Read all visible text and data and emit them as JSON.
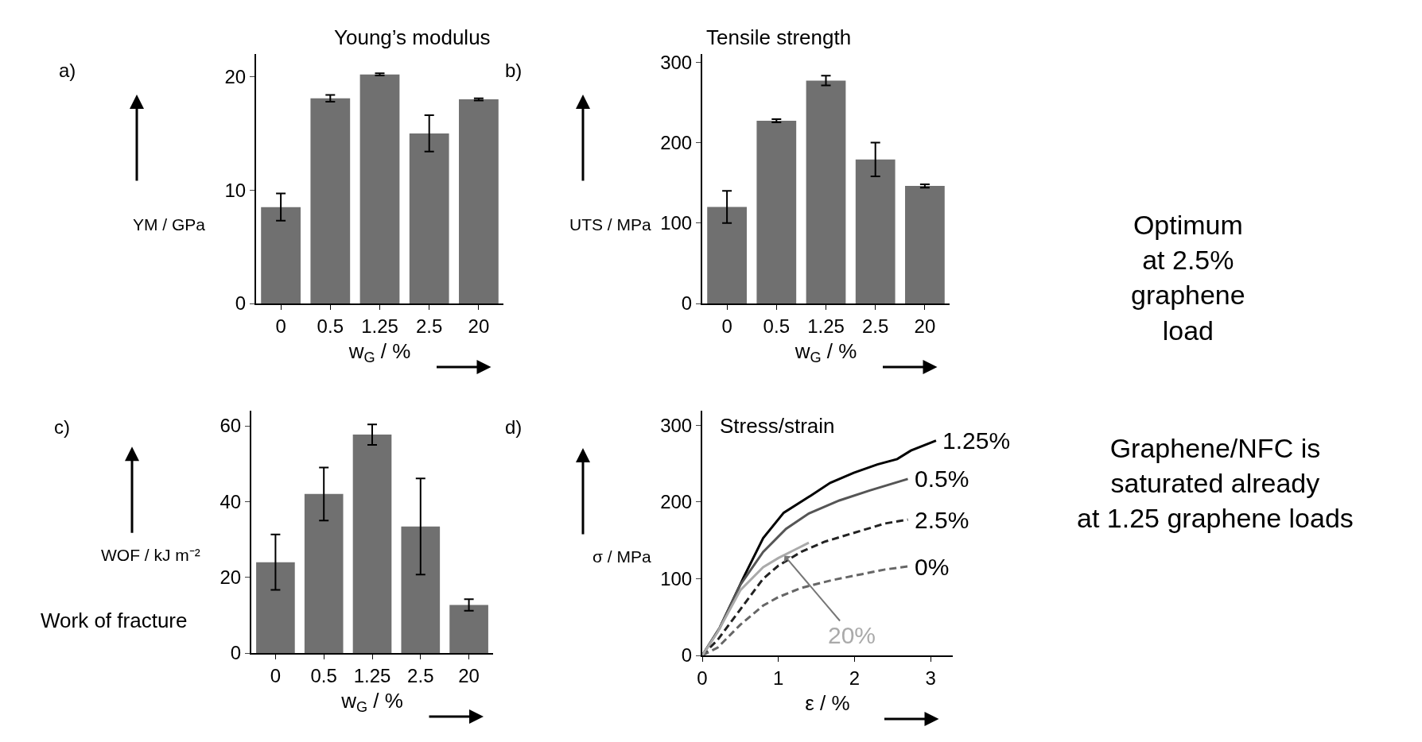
{
  "chart_data": [
    {
      "type": "bar",
      "title": "Young’s modulus",
      "ylabel": "YM / GPa",
      "xlabel": "w$_{G}$ / %",
      "categories": [
        "0",
        "0.5",
        "1.25",
        "2.5",
        "20"
      ],
      "color": "#707070",
      "values": [
        8.5,
        18.1,
        20.2,
        15.0,
        18.0
      ],
      "errors": [
        1.2,
        0.3,
        0.1,
        1.6,
        0.1
      ],
      "ylim": [
        0,
        22
      ],
      "yticks": [
        0,
        10,
        20
      ],
      "annotations": [
        "a)"
      ]
    },
    {
      "type": "bar",
      "title": "Tensile strength",
      "ylabel": "UTS / MPa",
      "xlabel": "w$_{G}$ / %",
      "categories": [
        "0",
        "0.5",
        "1.25",
        "2.5",
        "20"
      ],
      "color": "#707070",
      "values": [
        120,
        227,
        277,
        179,
        146
      ],
      "errors": [
        20,
        2,
        6,
        21,
        2
      ],
      "ylim": [
        0,
        310
      ],
      "yticks": [
        0,
        100,
        200,
        300
      ],
      "annotations": [
        "b)",
        "Optimum\nat 2.5%\ngraphene\nload"
      ]
    },
    {
      "type": "bar",
      "ylabel": "WOF / kJ m⁻²",
      "xlabel": "w$_{G}$ / %",
      "categories": [
        "0",
        "0.5",
        "1.25",
        "2.5",
        "20"
      ],
      "color": "#707070",
      "values": [
        24.0,
        42,
        57.7,
        33.4,
        12.7
      ],
      "errors": [
        7.3,
        7,
        2.7,
        12.7,
        1.5
      ],
      "ylim": [
        0,
        64
      ],
      "yticks": [
        0,
        20,
        40,
        60
      ],
      "annotations": [
        "c)",
        "Work of fracture"
      ]
    },
    {
      "type": "line",
      "title": "Stress/strain",
      "ylabel": "σ / MPa",
      "xlabel": "ε / %",
      "xlim": [
        0,
        3.29
      ],
      "xticks": [
        0,
        1,
        2,
        3
      ],
      "ylim": [
        0,
        319
      ],
      "yticks": [
        0,
        100,
        200,
        300
      ],
      "marker": "none",
      "series": [
        {
          "color": "#000000",
          "line_style": "solid",
          "x": [
            0,
            0.23,
            0.54,
            0.8,
            1.07,
            1.42,
            1.68,
            1.99,
            2.3,
            2.56,
            2.74,
            3.07
          ],
          "values": [
            0,
            36,
            101,
            153,
            186,
            208,
            225,
            238,
            249,
            256,
            267,
            280
          ]
        },
        {
          "color": "#555555",
          "line_style": "solid",
          "x": [
            0,
            0.23,
            0.5,
            0.8,
            1.1,
            1.4,
            1.8,
            2.2,
            2.7
          ],
          "values": [
            0,
            36,
            92,
            135,
            165,
            185,
            202,
            215,
            230
          ]
        },
        {
          "color": "#222222",
          "line_style": "dashed",
          "x": [
            0,
            0.2,
            0.5,
            0.8,
            1.0,
            1.3,
            1.6,
            2.0,
            2.4,
            2.7
          ],
          "values": [
            0,
            20,
            60,
            100,
            117,
            135,
            148,
            160,
            172,
            177
          ]
        },
        {
          "color": "#666666",
          "line_style": "dashed",
          "x": [
            0,
            0.2,
            0.5,
            0.8,
            1.0,
            1.3,
            1.7,
            2.1,
            2.4,
            2.7
          ],
          "values": [
            0,
            10,
            40,
            65,
            76,
            88,
            98,
            106,
            112,
            116
          ]
        },
        {
          "color": "#aaaaaa",
          "line_style": "solid",
          "x": [
            0,
            0.2,
            0.5,
            0.8,
            1.0,
            1.2,
            1.4
          ],
          "values": [
            0,
            30,
            85,
            115,
            127,
            137,
            147
          ]
        }
      ],
      "annotations": [
        "d)",
        "Graphene/NFC is\nsaturated already\nat 1.25 graphene loads",
        {
          "text": "1.25%",
          "x": 3.07,
          "y": 280
        },
        {
          "text": "0.5%",
          "x": 2.7,
          "y": 230
        },
        {
          "text": "2.5%",
          "x": 2.7,
          "y": 177
        },
        {
          "text": "0%",
          "x": 2.7,
          "y": 116
        },
        {
          "text": "20%",
          "x": 1.08,
          "y": 130
        }
      ]
    }
  ]
}
